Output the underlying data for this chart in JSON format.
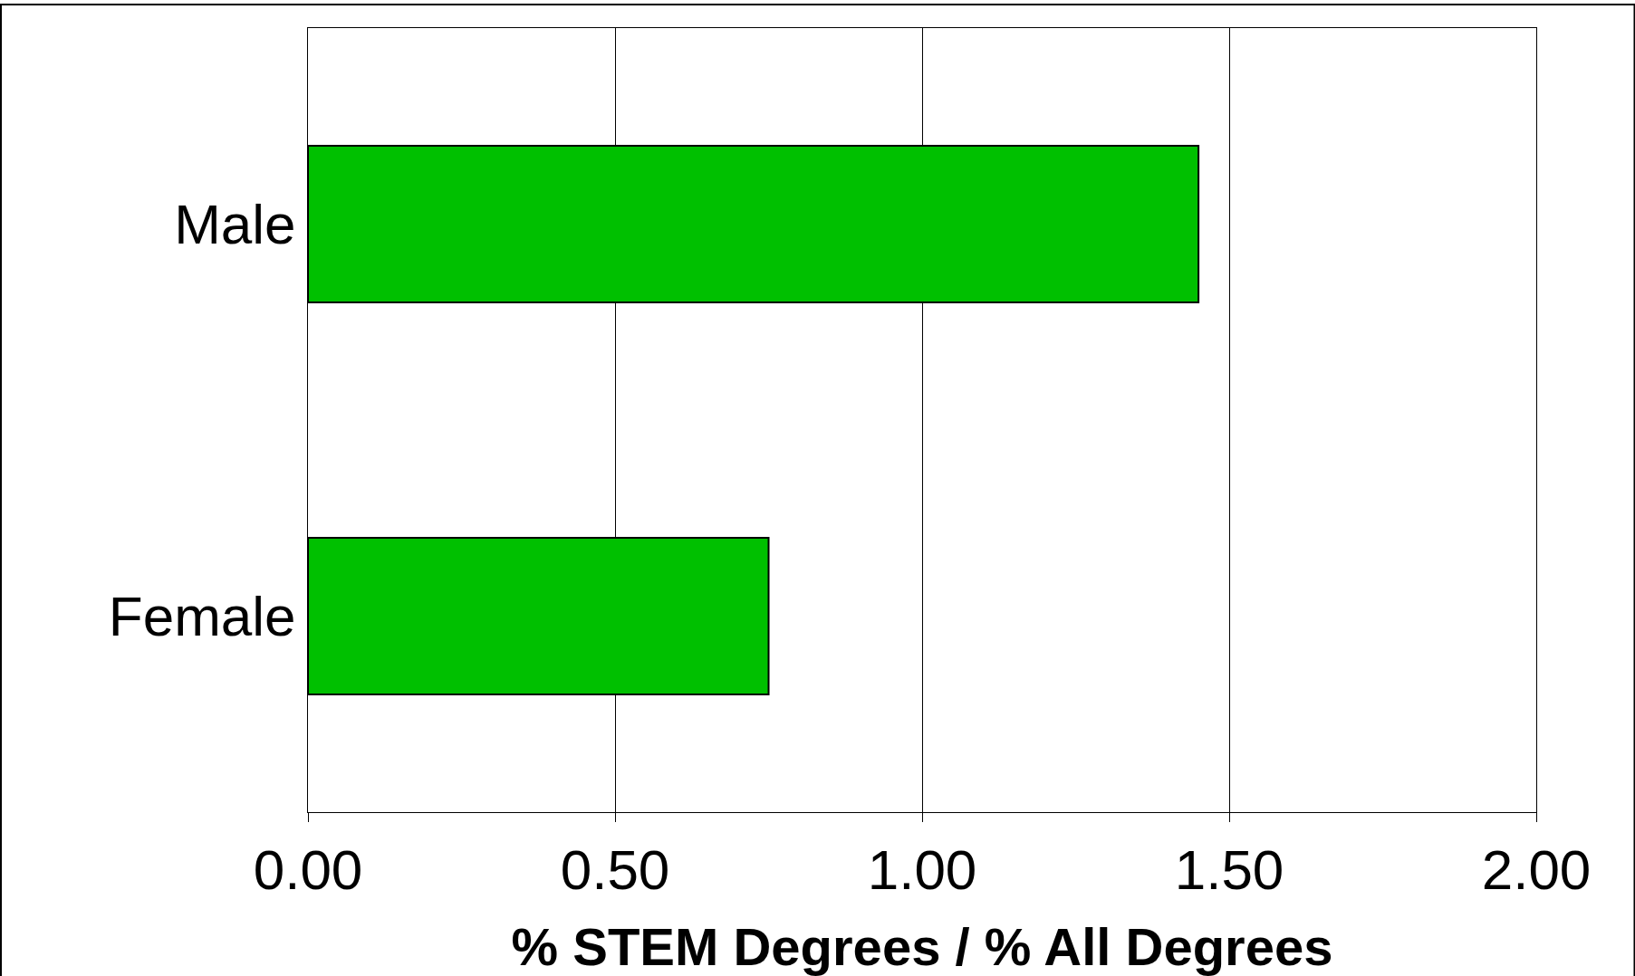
{
  "chart_data": {
    "type": "bar",
    "orientation": "horizontal",
    "categories": [
      "Male",
      "Female"
    ],
    "values": [
      1.45,
      0.75
    ],
    "color": "#00c000",
    "xlabel": "% STEM Degrees / % All Degrees",
    "xlim": [
      0,
      2
    ],
    "xticks": [
      {
        "value": 0,
        "label": "0.00"
      },
      {
        "value": 0.5,
        "label": "0.50"
      },
      {
        "value": 1,
        "label": "1.00"
      },
      {
        "value": 1.5,
        "label": "1.50"
      },
      {
        "value": 2,
        "label": "2.00"
      }
    ],
    "grid": "x"
  }
}
